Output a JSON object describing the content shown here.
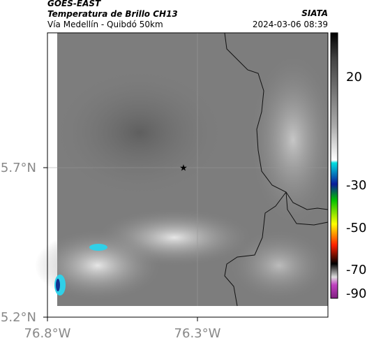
{
  "header": {
    "title": "GOES-EAST",
    "subtitle": "Temperatura de Brillo CH13",
    "region": "Vía Medellín - Quibdó 50km",
    "source": "SIATA",
    "timestamp": "2024-03-06 08:39"
  },
  "axes": {
    "lat_labels": [
      "5.7°N",
      "5.2°N"
    ],
    "lon_labels": [
      "76.8°W",
      "76.3°W"
    ]
  },
  "colorbar": {
    "tick_labels": [
      "20",
      "-30",
      "-50",
      "-70",
      "-90"
    ]
  }
}
